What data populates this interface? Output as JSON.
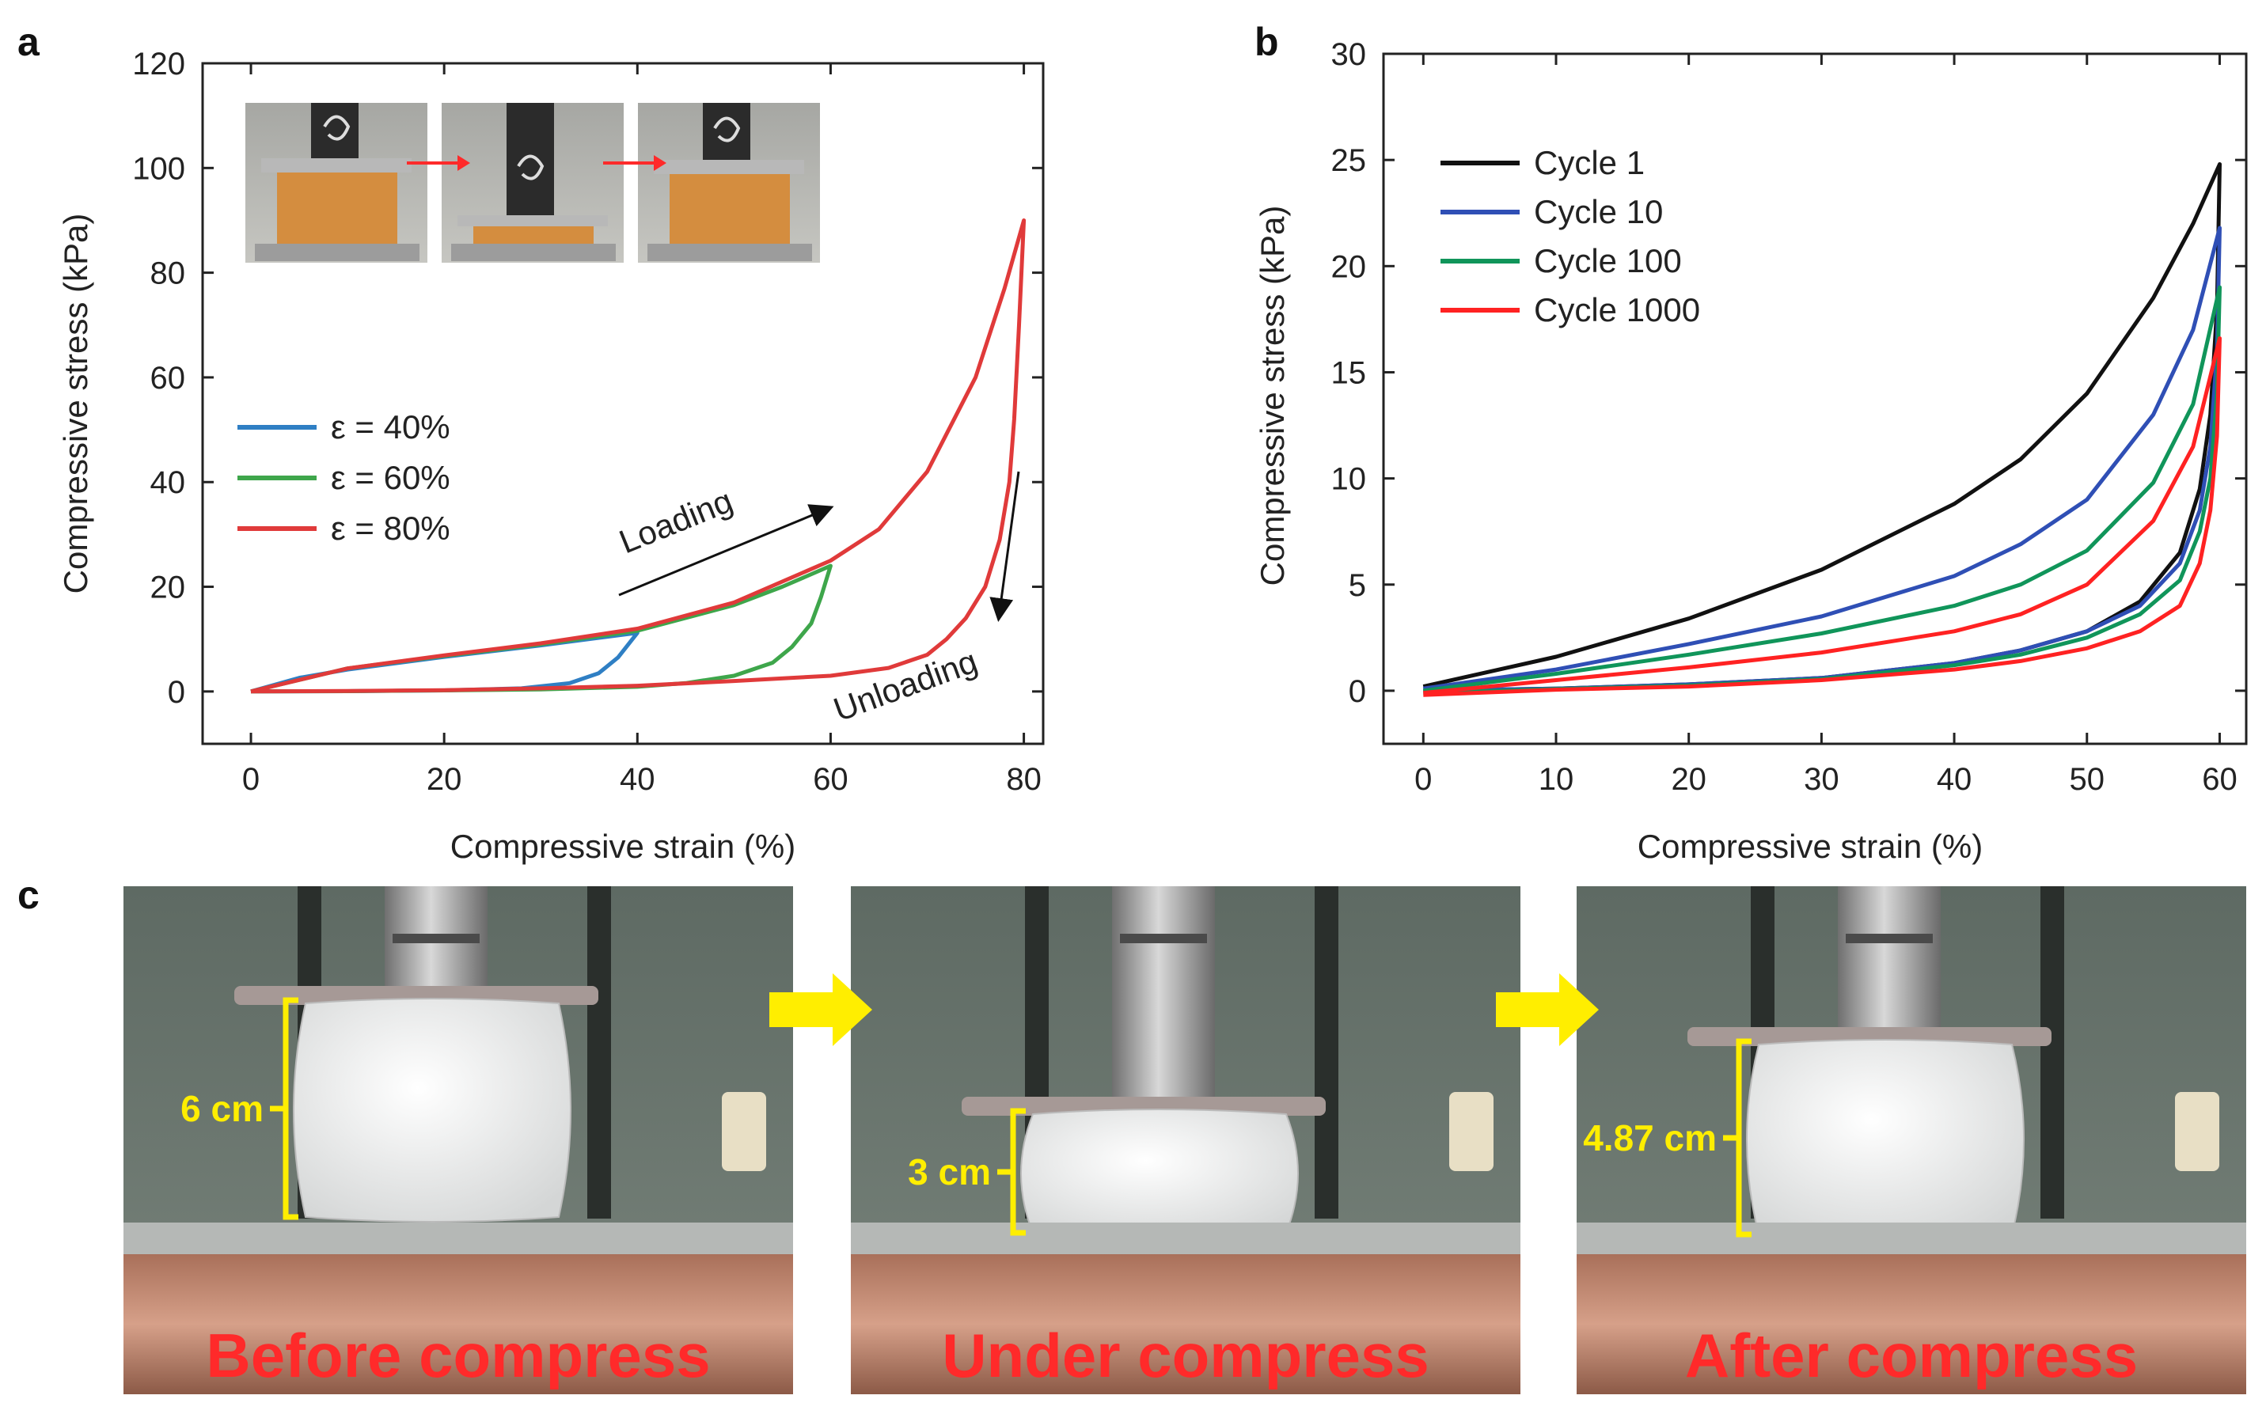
{
  "panels": {
    "a": "a",
    "b": "b",
    "c": "c"
  },
  "chart_data": [
    {
      "id": "a",
      "type": "line",
      "title": "",
      "xlabel": "Compressive strain (%)",
      "ylabel": "Compressive stress (kPa)",
      "xlim": [
        -5,
        82
      ],
      "ylim": [
        -10,
        120
      ],
      "xticks": [
        0,
        20,
        40,
        60,
        80
      ],
      "yticks": [
        0,
        20,
        40,
        60,
        80,
        100,
        120
      ],
      "legend_position": "middle-left",
      "series": [
        {
          "name": "ε = 40%",
          "color": "#2f7fc4",
          "loading": [
            [
              0,
              0
            ],
            [
              5,
              2.6
            ],
            [
              10,
              4.2
            ],
            [
              20,
              6.6
            ],
            [
              30,
              8.8
            ],
            [
              35,
              10
            ],
            [
              40,
              11.2
            ]
          ],
          "unloading": [
            [
              40,
              11.2
            ],
            [
              38,
              6.5
            ],
            [
              36,
              3.5
            ],
            [
              33,
              1.6
            ],
            [
              28,
              0.6
            ],
            [
              20,
              0.2
            ],
            [
              10,
              0.05
            ],
            [
              0,
              0
            ]
          ]
        },
        {
          "name": "ε = 60%",
          "color": "#3ea64b",
          "loading": [
            [
              0,
              0
            ],
            [
              10,
              4.4
            ],
            [
              20,
              6.8
            ],
            [
              30,
              9
            ],
            [
              40,
              11.6
            ],
            [
              50,
              16.5
            ],
            [
              55,
              20
            ],
            [
              60,
              24
            ]
          ],
          "unloading": [
            [
              60,
              24
            ],
            [
              59,
              18
            ],
            [
              58,
              13
            ],
            [
              56,
              8.5
            ],
            [
              54,
              5.5
            ],
            [
              50,
              3
            ],
            [
              45,
              1.6
            ],
            [
              40,
              0.9
            ],
            [
              30,
              0.4
            ],
            [
              20,
              0.2
            ],
            [
              10,
              0.05
            ],
            [
              0,
              0
            ]
          ]
        },
        {
          "name": "ε = 80%",
          "color": "#e03a3a",
          "loading": [
            [
              0,
              0
            ],
            [
              10,
              4.4
            ],
            [
              20,
              6.9
            ],
            [
              30,
              9.2
            ],
            [
              40,
              12
            ],
            [
              50,
              17
            ],
            [
              60,
              25
            ],
            [
              65,
              31
            ],
            [
              70,
              42
            ],
            [
              75,
              60
            ],
            [
              78,
              77
            ],
            [
              80,
              90
            ]
          ],
          "unloading": [
            [
              80,
              90
            ],
            [
              79.5,
              70
            ],
            [
              79,
              52
            ],
            [
              78.5,
              40
            ],
            [
              77.5,
              29
            ],
            [
              76,
              20
            ],
            [
              74,
              14
            ],
            [
              72,
              10
            ],
            [
              70,
              7
            ],
            [
              66,
              4.5
            ],
            [
              60,
              3
            ],
            [
              50,
              2
            ],
            [
              40,
              1.1
            ],
            [
              30,
              0.6
            ],
            [
              20,
              0.25
            ],
            [
              10,
              0.08
            ],
            [
              0,
              0
            ]
          ]
        }
      ],
      "annotations": {
        "loading": "Loading",
        "unloading": "Unloading"
      }
    },
    {
      "id": "b",
      "type": "line",
      "title": "",
      "xlabel": "Compressive strain (%)",
      "ylabel": "Compressive stress (kPa)",
      "xlim": [
        -3,
        62
      ],
      "ylim": [
        -2.5,
        30
      ],
      "xticks": [
        0,
        10,
        20,
        30,
        40,
        50,
        60
      ],
      "yticks": [
        0,
        5,
        10,
        15,
        20,
        25,
        30
      ],
      "legend_position": "top-left",
      "series": [
        {
          "name": "Cycle 1",
          "color": "#111111",
          "loading": [
            [
              0,
              0.2
            ],
            [
              10,
              1.6
            ],
            [
              20,
              3.4
            ],
            [
              30,
              5.7
            ],
            [
              40,
              8.8
            ],
            [
              45,
              10.9
            ],
            [
              50,
              14
            ],
            [
              55,
              18.5
            ],
            [
              58,
              22
            ],
            [
              60,
              24.8
            ]
          ],
          "unloading": [
            [
              60,
              24.8
            ],
            [
              59.8,
              18
            ],
            [
              59.3,
              13
            ],
            [
              58.5,
              9.5
            ],
            [
              57,
              6.5
            ],
            [
              54,
              4.2
            ],
            [
              50,
              2.8
            ],
            [
              45,
              1.9
            ],
            [
              40,
              1.3
            ],
            [
              30,
              0.6
            ],
            [
              20,
              0.3
            ],
            [
              10,
              0.1
            ],
            [
              0,
              0
            ]
          ]
        },
        {
          "name": "Cycle 10",
          "color": "#2f4fb5",
          "loading": [
            [
              0,
              0.1
            ],
            [
              10,
              1
            ],
            [
              20,
              2.2
            ],
            [
              30,
              3.5
            ],
            [
              40,
              5.4
            ],
            [
              45,
              6.9
            ],
            [
              50,
              9
            ],
            [
              55,
              13
            ],
            [
              58,
              17
            ],
            [
              60,
              21.8
            ]
          ],
          "unloading": [
            [
              60,
              21.8
            ],
            [
              59.8,
              16
            ],
            [
              59.3,
              11.5
            ],
            [
              58.5,
              8.5
            ],
            [
              57,
              6
            ],
            [
              54,
              4
            ],
            [
              50,
              2.8
            ],
            [
              45,
              1.9
            ],
            [
              40,
              1.3
            ],
            [
              30,
              0.6
            ],
            [
              20,
              0.3
            ],
            [
              10,
              0.1
            ],
            [
              0,
              0
            ]
          ]
        },
        {
          "name": "Cycle 100",
          "color": "#10955a",
          "loading": [
            [
              0,
              0
            ],
            [
              10,
              0.8
            ],
            [
              20,
              1.7
            ],
            [
              30,
              2.7
            ],
            [
              40,
              4
            ],
            [
              45,
              5
            ],
            [
              50,
              6.6
            ],
            [
              55,
              9.8
            ],
            [
              58,
              13.5
            ],
            [
              60,
              19
            ]
          ],
          "unloading": [
            [
              60,
              19
            ],
            [
              59.8,
              14
            ],
            [
              59.3,
              10
            ],
            [
              58.5,
              7.5
            ],
            [
              57,
              5.2
            ],
            [
              54,
              3.6
            ],
            [
              50,
              2.5
            ],
            [
              45,
              1.7
            ],
            [
              40,
              1.2
            ],
            [
              30,
              0.55
            ],
            [
              20,
              0.25
            ],
            [
              10,
              0.08
            ],
            [
              0,
              -0.1
            ]
          ]
        },
        {
          "name": "Cycle 1000",
          "color": "#ff2222",
          "loading": [
            [
              0,
              -0.1
            ],
            [
              10,
              0.5
            ],
            [
              20,
              1.1
            ],
            [
              30,
              1.8
            ],
            [
              40,
              2.8
            ],
            [
              45,
              3.6
            ],
            [
              50,
              5
            ],
            [
              55,
              8
            ],
            [
              58,
              11.5
            ],
            [
              60,
              16.6
            ]
          ],
          "unloading": [
            [
              60,
              16.6
            ],
            [
              59.8,
              12
            ],
            [
              59.3,
              8.5
            ],
            [
              58.5,
              6
            ],
            [
              57,
              4
            ],
            [
              54,
              2.8
            ],
            [
              50,
              2
            ],
            [
              45,
              1.4
            ],
            [
              40,
              1
            ],
            [
              30,
              0.5
            ],
            [
              20,
              0.2
            ],
            [
              10,
              0.05
            ],
            [
              0,
              -0.2
            ]
          ]
        }
      ]
    }
  ],
  "photos": {
    "before": {
      "caption": "Before compress",
      "height": "6 cm"
    },
    "under": {
      "caption": "Under compress",
      "height": "3 cm"
    },
    "after": {
      "caption": "After compress",
      "height": "4.87 cm"
    }
  }
}
